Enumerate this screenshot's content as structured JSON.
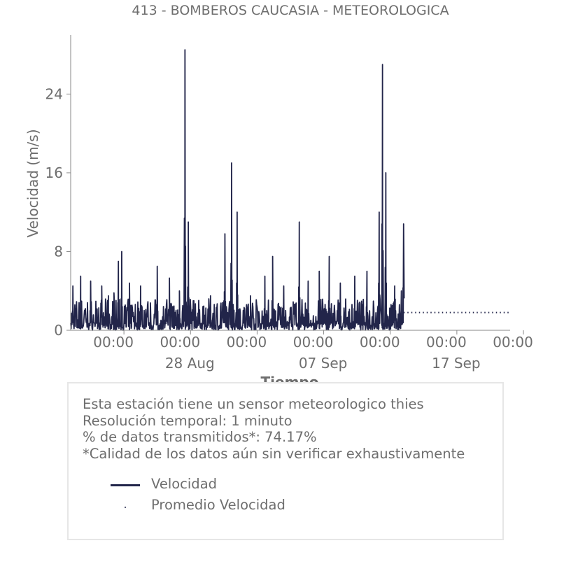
{
  "chart_data": {
    "type": "line",
    "title": "413 - BOMBEROS CAUCASIA - METEOROLOGICA",
    "xlabel": "Tiempo",
    "ylabel": "Velocidad (m/s)",
    "xlim": [
      "2023-08-19",
      "2023-09-21"
    ],
    "ylim": [
      0,
      30
    ],
    "yticks": [
      0,
      8,
      16,
      24
    ],
    "xticks": [
      {
        "date": "2023-08-23",
        "label": "00:00"
      },
      {
        "date": "2023-08-28",
        "label": "00:00",
        "sublabel": "28 Aug"
      },
      {
        "date": "2023-09-02",
        "label": "00:00"
      },
      {
        "date": "2023-09-07",
        "label": "00:00",
        "sublabel": "07 Sep"
      },
      {
        "date": "2023-09-12",
        "label": "00:00"
      },
      {
        "date": "2023-09-17",
        "label": "00:00",
        "sublabel": "17 Sep"
      },
      {
        "date": "2023-09-22",
        "label": "00:00"
      }
    ],
    "grid": false,
    "series": [
      {
        "name": "Velocidad",
        "style": "solid",
        "color": "#22254a",
        "start": "2023-08-19",
        "end": "2023-09-13",
        "peaks": [
          {
            "date": "2023-08-19T04:00",
            "value": 4.5
          },
          {
            "date": "2023-08-19T18:00",
            "value": 5.5
          },
          {
            "date": "2023-08-20T12:00",
            "value": 5.0
          },
          {
            "date": "2023-08-21T08:00",
            "value": 4.5
          },
          {
            "date": "2023-08-21T20:00",
            "value": 3.5
          },
          {
            "date": "2023-08-22T06:00",
            "value": 3.8
          },
          {
            "date": "2023-08-22T14:00",
            "value": 7.0
          },
          {
            "date": "2023-08-22T20:00",
            "value": 8.0
          },
          {
            "date": "2023-08-23T10:00",
            "value": 4.8
          },
          {
            "date": "2023-08-24T06:00",
            "value": 4.5
          },
          {
            "date": "2023-08-25T12:00",
            "value": 6.5
          },
          {
            "date": "2023-08-26T10:00",
            "value": 5.3
          },
          {
            "date": "2023-08-27T04:00",
            "value": 4.0
          },
          {
            "date": "2023-08-27T14:00",
            "value": 28.5
          },
          {
            "date": "2023-08-27T20:00",
            "value": 11.0
          },
          {
            "date": "2023-08-28T06:00",
            "value": 3.0
          },
          {
            "date": "2023-08-29T12:00",
            "value": 3.5
          },
          {
            "date": "2023-08-30T14:00",
            "value": 9.8
          },
          {
            "date": "2023-08-31T02:00",
            "value": 17.0
          },
          {
            "date": "2023-08-31T12:00",
            "value": 12.0
          },
          {
            "date": "2023-09-01T12:00",
            "value": 3.5
          },
          {
            "date": "2023-09-02T14:00",
            "value": 5.5
          },
          {
            "date": "2023-09-03T04:00",
            "value": 7.5
          },
          {
            "date": "2023-09-04T00:00",
            "value": 4.5
          },
          {
            "date": "2023-09-05T04:00",
            "value": 11.0
          },
          {
            "date": "2023-09-05T20:00",
            "value": 5.0
          },
          {
            "date": "2023-09-06T16:00",
            "value": 6.0
          },
          {
            "date": "2023-09-07T10:00",
            "value": 7.5
          },
          {
            "date": "2023-09-08T06:00",
            "value": 4.8
          },
          {
            "date": "2023-09-09T08:00",
            "value": 5.5
          },
          {
            "date": "2023-09-10T06:00",
            "value": 6.0
          },
          {
            "date": "2023-09-11T04:00",
            "value": 12.0
          },
          {
            "date": "2023-09-11T10:00",
            "value": 27.0
          },
          {
            "date": "2023-09-11T16:00",
            "value": 16.0
          },
          {
            "date": "2023-09-12T08:00",
            "value": 4.5
          },
          {
            "date": "2023-09-12T20:00",
            "value": 4.0
          },
          {
            "date": "2023-09-13T00:00",
            "value": 10.8
          }
        ]
      },
      {
        "name": "Promedio Velocidad",
        "style": "dotted",
        "color": "#22254a",
        "start": "2023-09-13",
        "end": "2023-09-21",
        "value": 1.8
      }
    ]
  },
  "info": {
    "lines": [
      "Esta estación tiene un sensor meteorologico thies",
      "Resolución temporal: 1 minuto",
      "% de datos transmitidos*: 74.17%",
      "*Calidad de los datos aún sin verificar exhaustivamente"
    ]
  },
  "legend": {
    "items": [
      "Velocidad",
      "Promedio Velocidad"
    ]
  }
}
